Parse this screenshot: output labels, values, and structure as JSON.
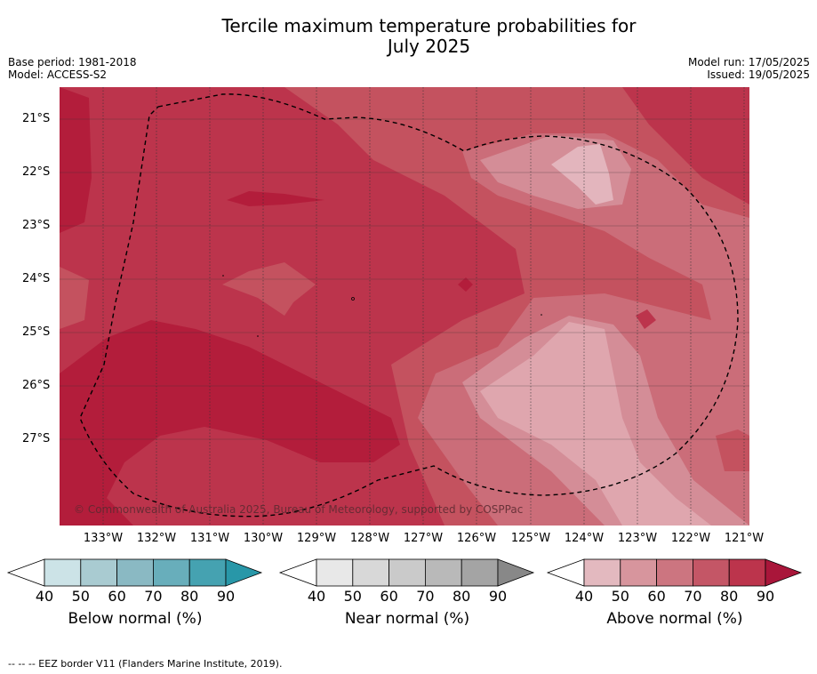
{
  "title_line1": "Tercile maximum temperature probabilities for",
  "title_line2": "July 2025",
  "meta": {
    "base_period": "Base period: 1981-2018",
    "model": "Model: ACCESS-S2",
    "model_run": "Model run: 17/05/2025",
    "issued": "Issued: 19/05/2025"
  },
  "map": {
    "lat_labels": [
      "21°S",
      "22°S",
      "23°S",
      "24°S",
      "25°S",
      "26°S",
      "27°S"
    ],
    "lon_labels": [
      "133°W",
      "132°W",
      "131°W",
      "130°W",
      "129°W",
      "128°W",
      "127°W",
      "126°W",
      "125°W",
      "124°W",
      "123°W",
      "122°W",
      "121°W"
    ],
    "copyright": "© Commonwealth of Australia 2025, Bureau of Meteorology, supported by COSPPac",
    "colors": {
      "above_80_90": "#bc344c",
      "above_90": "#b31d3b",
      "above_70_80": "#c4525f",
      "above_60_70": "#cb6d79",
      "above_50_60": "#d48d97",
      "above_40_50": "#e3b5bd"
    }
  },
  "colorbars": [
    {
      "label": "Below normal (%)",
      "ticks": [
        "40",
        "50",
        "60",
        "70",
        "80",
        "90"
      ],
      "colors": [
        "#cce3e7",
        "#a9cbd1",
        "#8ab9c3",
        "#68aebb",
        "#45a2b1",
        "#2897a8"
      ]
    },
    {
      "label": "Near normal (%)",
      "ticks": [
        "40",
        "50",
        "60",
        "70",
        "80",
        "90"
      ],
      "colors": [
        "#e8e8e8",
        "#d8d8d8",
        "#cacaca",
        "#b9b9b9",
        "#a4a4a4",
        "#888888"
      ]
    },
    {
      "label": "Above normal (%)",
      "ticks": [
        "40",
        "50",
        "60",
        "70",
        "80",
        "90"
      ],
      "colors": [
        "#e3b9bf",
        "#d7959d",
        "#cc7580",
        "#c45666",
        "#bc344c",
        "#a9163a"
      ]
    }
  ],
  "footnote": "--  --  -- EEZ border V11 (Flanders Marine Institute, 2019)."
}
